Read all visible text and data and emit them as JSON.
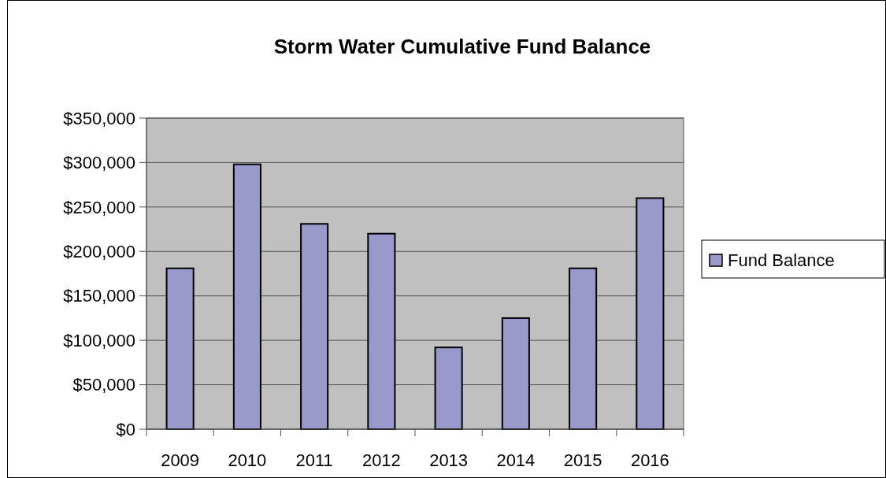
{
  "chart_data": {
    "type": "bar",
    "title": "Storm Water Cumulative Fund Balance",
    "categories": [
      "2009",
      "2010",
      "2011",
      "2012",
      "2013",
      "2014",
      "2015",
      "2016"
    ],
    "series": [
      {
        "name": "Fund Balance",
        "color": "#9999cc",
        "values": [
          181000,
          298000,
          231000,
          220000,
          92000,
          125000,
          181000,
          260000
        ]
      }
    ],
    "ylim": [
      0,
      350000
    ],
    "yticks": [
      {
        "value": 0,
        "label": "$0"
      },
      {
        "value": 50000,
        "label": "$50,000"
      },
      {
        "value": 100000,
        "label": "$100,000"
      },
      {
        "value": 150000,
        "label": "$150,000"
      },
      {
        "value": 200000,
        "label": "$200,000"
      },
      {
        "value": 250000,
        "label": "$250,000"
      },
      {
        "value": 300000,
        "label": "$300,000"
      },
      {
        "value": 350000,
        "label": "$350,000"
      }
    ],
    "grid": "y",
    "legend": "right"
  }
}
